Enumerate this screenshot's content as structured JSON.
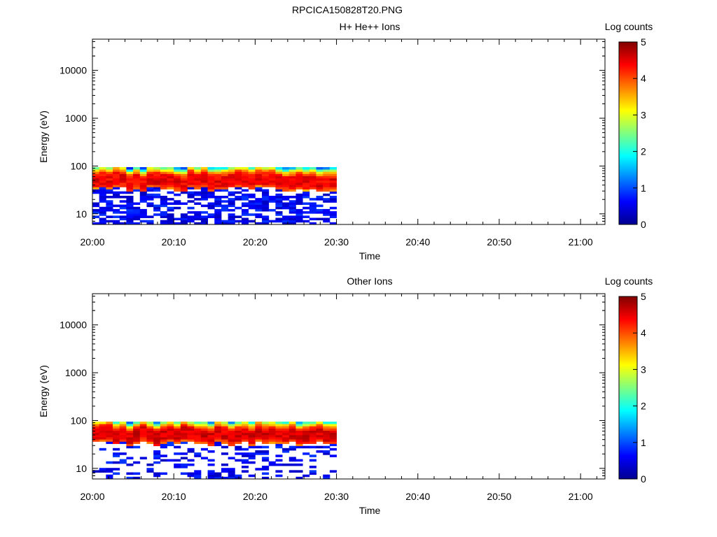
{
  "figure_title": "RPCICA150828T20.PNG",
  "colorbar": {
    "label": "Log counts",
    "ticks": [
      "0",
      "1",
      "2",
      "3",
      "4",
      "5"
    ]
  },
  "chart_data": [
    {
      "type": "heatmap",
      "title": "H+ He++ Ions",
      "xlabel": "Time",
      "ylabel": "Energy (eV)",
      "yscale": "log",
      "ylim": [
        6,
        45000
      ],
      "xlim": [
        "20:00",
        "21:03"
      ],
      "x_ticks": [
        "20:00",
        "20:10",
        "20:20",
        "20:30",
        "20:40",
        "20:50",
        "21:00"
      ],
      "y_ticks": [
        {
          "label": "10",
          "value": 10
        },
        {
          "label": "100",
          "value": 100
        },
        {
          "label": "1000",
          "value": 1000
        },
        {
          "label": "10000",
          "value": 10000
        }
      ],
      "colorscale": "jet",
      "color_range": [
        0,
        5
      ],
      "data_time_range": [
        "20:00",
        "20:30"
      ],
      "data_energy_range_eV": [
        6,
        95
      ],
      "peak_energy_eV": 50,
      "peak_log_counts": 4.7,
      "low_energy_fill": 0.6
    },
    {
      "type": "heatmap",
      "title": "Other Ions",
      "xlabel": "Time",
      "ylabel": "Energy (eV)",
      "yscale": "log",
      "ylim": [
        6,
        45000
      ],
      "xlim": [
        "20:00",
        "21:03"
      ],
      "x_ticks": [
        "20:00",
        "20:10",
        "20:20",
        "20:30",
        "20:40",
        "20:50",
        "21:00"
      ],
      "y_ticks": [
        {
          "label": "10",
          "value": 10
        },
        {
          "label": "100",
          "value": 100
        },
        {
          "label": "1000",
          "value": 1000
        },
        {
          "label": "10000",
          "value": 10000
        }
      ],
      "colorscale": "jet",
      "color_range": [
        0,
        5
      ],
      "data_time_range": [
        "20:00",
        "20:30"
      ],
      "data_energy_range_eV": [
        6,
        95
      ],
      "peak_energy_eV": 50,
      "peak_log_counts": 4.8,
      "low_energy_fill": 0.3
    }
  ]
}
